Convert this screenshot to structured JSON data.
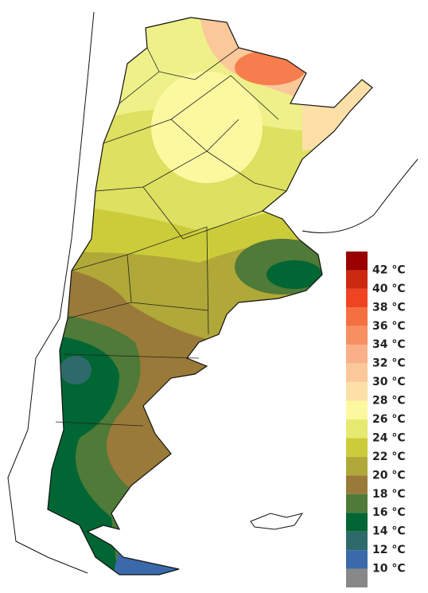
{
  "legend": {
    "labels": [
      "42 °C",
      "40 °C",
      "38 °C",
      "36 °C",
      "34 °C",
      "32 °C",
      "30 °C",
      "28 °C",
      "26 °C",
      "24 °C",
      "22 °C",
      "20 °C",
      "18 °C",
      "16 °C",
      "14 °C",
      "12 °C",
      "10 °C"
    ],
    "colors": [
      "#990000",
      "#cc2a10",
      "#ee4422",
      "#f57040",
      "#f79060",
      "#f9b088",
      "#fbc89a",
      "#fde0a8",
      "#fcf8a0",
      "#e6ea70",
      "#cccc3a",
      "#b0a838",
      "#9a7a38",
      "#4f7a38",
      "#006633",
      "#2f6a6a",
      "#3a6aaa",
      "#888888"
    ]
  }
}
